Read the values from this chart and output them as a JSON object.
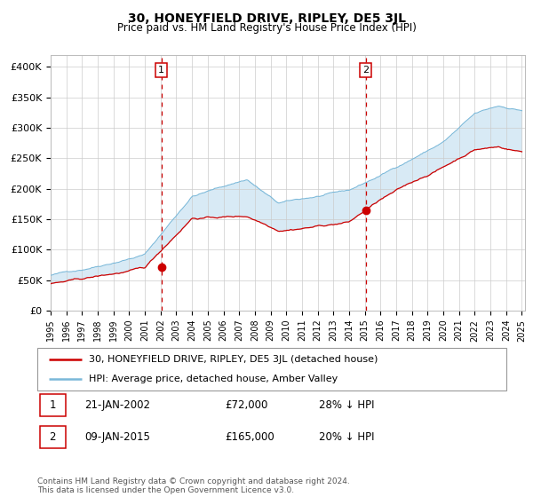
{
  "title": "30, HONEYFIELD DRIVE, RIPLEY, DE5 3JL",
  "subtitle": "Price paid vs. HM Land Registry's House Price Index (HPI)",
  "legend_line1": "30, HONEYFIELD DRIVE, RIPLEY, DE5 3JL (detached house)",
  "legend_line2": "HPI: Average price, detached house, Amber Valley",
  "annotation1_date": "21-JAN-2002",
  "annotation1_price": "£72,000",
  "annotation1_pct": "28% ↓ HPI",
  "annotation2_date": "09-JAN-2015",
  "annotation2_price": "£165,000",
  "annotation2_pct": "20% ↓ HPI",
  "footer": "Contains HM Land Registry data © Crown copyright and database right 2024.\nThis data is licensed under the Open Government Licence v3.0.",
  "hpi_color": "#7ab8d9",
  "price_color": "#cc0000",
  "marker_color": "#cc0000",
  "vline_color": "#cc0000",
  "annotation_box_color": "#cc0000",
  "fill_color": "#d8eaf5",
  "ylim": [
    0,
    420000
  ],
  "yticks": [
    0,
    50000,
    100000,
    150000,
    200000,
    250000,
    300000,
    350000,
    400000
  ],
  "ytick_labels": [
    "£0",
    "£50K",
    "£100K",
    "£150K",
    "£200K",
    "£250K",
    "£300K",
    "£350K",
    "£400K"
  ],
  "sale1_t": 2002.05,
  "sale1_v": 72000,
  "sale2_t": 2015.05,
  "sale2_v": 165000
}
